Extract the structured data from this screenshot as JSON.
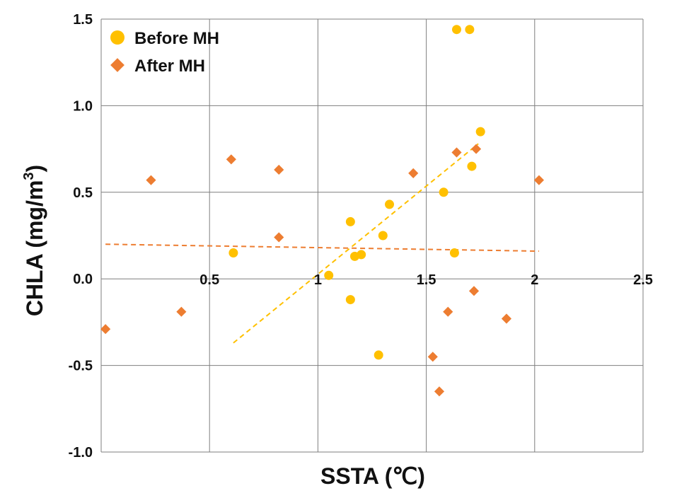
{
  "chart_data": {
    "type": "scatter",
    "title": "",
    "xlabel": "SSTA (℃)",
    "ylabel_main": "CHLA (mg/m",
    "ylabel_sup": "3",
    "ylabel_close": ")",
    "xlim": [
      0,
      2.5
    ],
    "ylim": [
      -1.0,
      1.5
    ],
    "x_ticks": [
      0.5,
      1,
      1.5,
      2,
      2.5
    ],
    "x_tick_labels": [
      "0.5",
      "1",
      "1.5",
      "2",
      "2.5"
    ],
    "y_ticks": [
      -1.0,
      -0.5,
      0.0,
      0.5,
      1.0,
      1.5
    ],
    "y_tick_labels": [
      "-1.0",
      "-0.5",
      "0.0",
      "0.5",
      "1.0",
      "1.5"
    ],
    "grid": true,
    "legend_position": "top-left",
    "series": [
      {
        "name": "Before MH",
        "marker": "circle",
        "color": "#FFC000",
        "points": [
          [
            0.61,
            0.15
          ],
          [
            1.05,
            0.02
          ],
          [
            1.15,
            0.33
          ],
          [
            1.15,
            -0.12
          ],
          [
            1.17,
            0.13
          ],
          [
            1.2,
            0.14
          ],
          [
            1.28,
            -0.44
          ],
          [
            1.3,
            0.25
          ],
          [
            1.33,
            0.43
          ],
          [
            1.58,
            0.5
          ],
          [
            1.63,
            0.15
          ],
          [
            1.64,
            1.44
          ],
          [
            1.7,
            1.44
          ],
          [
            1.71,
            0.65
          ],
          [
            1.75,
            0.85
          ]
        ],
        "trendline": {
          "x": [
            0.61,
            1.74
          ],
          "y": [
            -0.37,
            0.78
          ]
        }
      },
      {
        "name": "After MH",
        "marker": "diamond",
        "color": "#ED7D31",
        "points": [
          [
            0.02,
            -0.29
          ],
          [
            0.23,
            0.57
          ],
          [
            0.37,
            -0.19
          ],
          [
            0.6,
            0.69
          ],
          [
            0.82,
            0.63
          ],
          [
            0.82,
            0.24
          ],
          [
            1.44,
            0.61
          ],
          [
            1.53,
            -0.45
          ],
          [
            1.56,
            -0.65
          ],
          [
            1.6,
            -0.19
          ],
          [
            1.64,
            0.73
          ],
          [
            1.72,
            -0.07
          ],
          [
            1.73,
            0.75
          ],
          [
            1.87,
            -0.23
          ],
          [
            2.02,
            0.57
          ]
        ],
        "trendline": {
          "x": [
            0.02,
            2.02
          ],
          "y": [
            0.2,
            0.16
          ]
        }
      }
    ]
  }
}
